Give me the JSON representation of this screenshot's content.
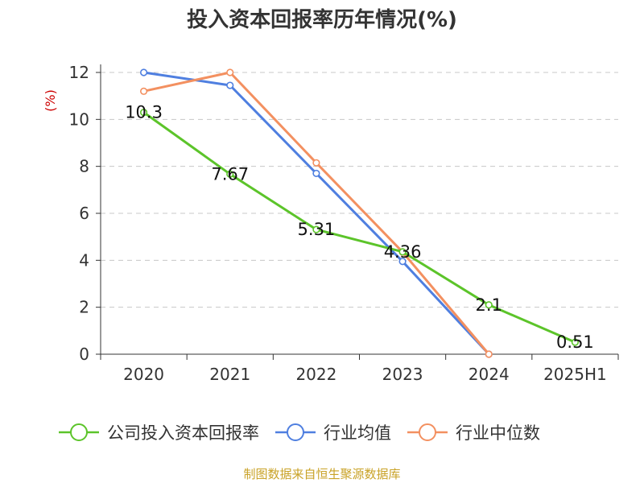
{
  "chart_data": {
    "type": "line",
    "title": "投入资本回报率历年情况(%)",
    "ylabel": "(%)",
    "categories": [
      "2020",
      "2021",
      "2022",
      "2023",
      "2024",
      "2025H1"
    ],
    "yticks": [
      "0",
      "2",
      "4",
      "6",
      "8",
      "10",
      "12"
    ],
    "ylim": [
      0,
      12
    ],
    "grid": true,
    "legend_position": "bottom",
    "series": [
      {
        "name": "公司投入资本回报率",
        "color": "#5cc42a",
        "values": [
          10.3,
          7.67,
          5.31,
          4.36,
          2.1,
          0.51
        ],
        "labels": [
          "10.3",
          "7.67",
          "5.31",
          "4.36",
          "2.1",
          "0.51"
        ]
      },
      {
        "name": "行业均值",
        "color": "#4f7fe0",
        "values": [
          12.0,
          11.45,
          7.7,
          3.95,
          0.0,
          null
        ]
      },
      {
        "name": "行业中位数",
        "color": "#f39060",
        "values": [
          11.2,
          12.0,
          8.15,
          4.35,
          0.0,
          null
        ]
      }
    ]
  },
  "source": "制图数据来自恒生聚源数据库"
}
